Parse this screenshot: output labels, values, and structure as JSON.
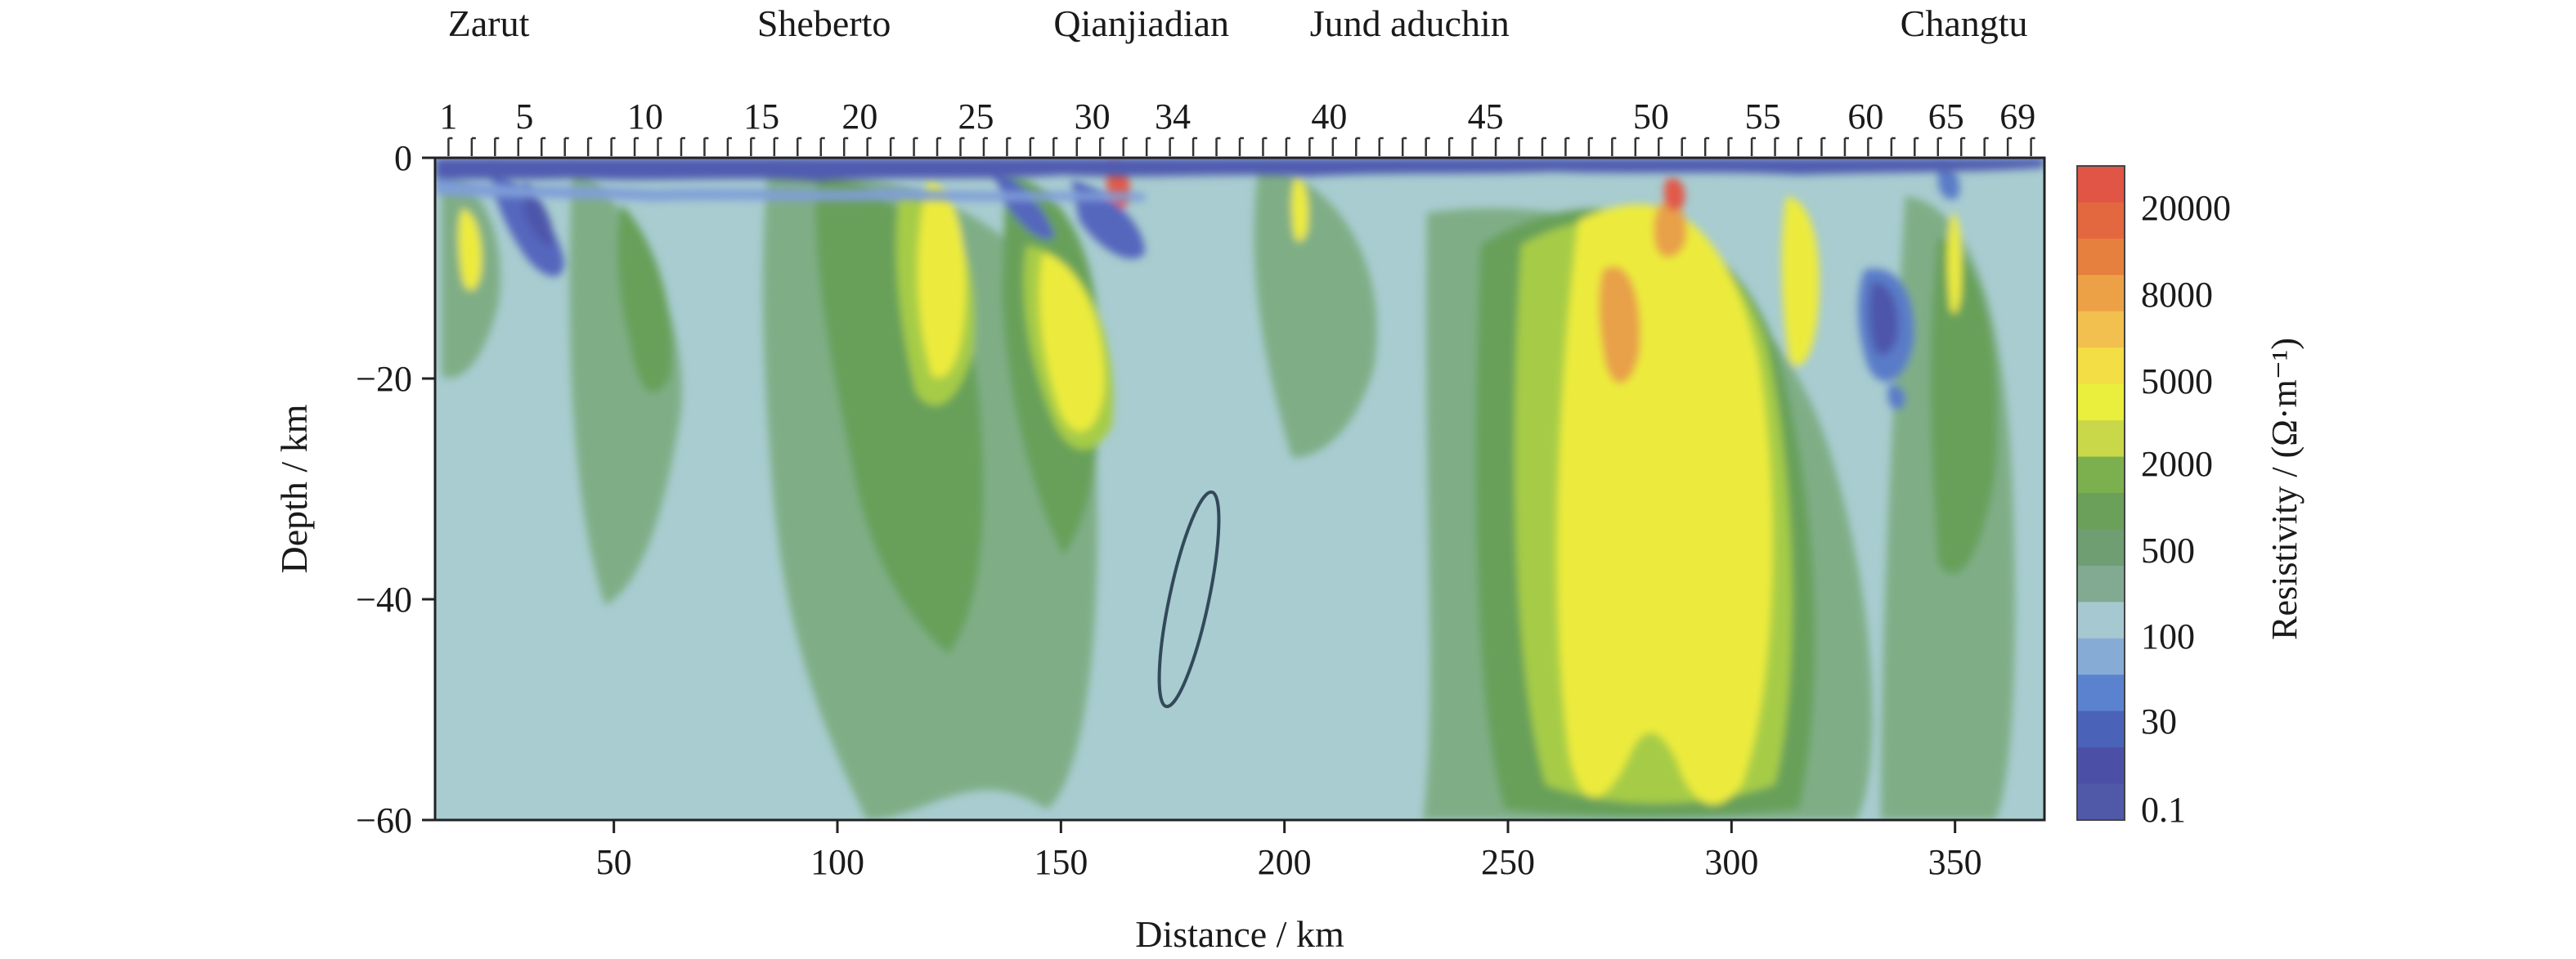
{
  "chart_data": {
    "type": "heatmap",
    "title": "",
    "xlabel": "Distance / km",
    "ylabel": "Depth / km",
    "xlim": [
      10,
      370
    ],
    "ylim": [
      -60,
      0
    ],
    "x_ticks": [
      50,
      100,
      150,
      200,
      250,
      300,
      350
    ],
    "y_ticks": [
      0,
      -20,
      -40,
      -60
    ],
    "y_tick_labels": [
      "0",
      "−20",
      "−40",
      "−60"
    ],
    "grid": false,
    "locations": [
      {
        "name": "Zarut",
        "x": 22
      },
      {
        "name": "Sheberto",
        "x": 97
      },
      {
        "name": "Qianjiadian",
        "x": 168
      },
      {
        "name": "Jund aduchin",
        "x": 228
      },
      {
        "name": "Changtu",
        "x": 352
      }
    ],
    "station_labels": [
      {
        "label": "1",
        "x": 13
      },
      {
        "label": "5",
        "x": 30
      },
      {
        "label": "10",
        "x": 57
      },
      {
        "label": "15",
        "x": 83
      },
      {
        "label": "20",
        "x": 105
      },
      {
        "label": "25",
        "x": 131
      },
      {
        "label": "30",
        "x": 157
      },
      {
        "label": "34",
        "x": 175
      },
      {
        "label": "40",
        "x": 210
      },
      {
        "label": "45",
        "x": 245
      },
      {
        "label": "50",
        "x": 282
      },
      {
        "label": "55",
        "x": 307
      },
      {
        "label": "60",
        "x": 330
      },
      {
        "label": "65",
        "x": 348
      },
      {
        "label": "69",
        "x": 364
      }
    ],
    "colorbar": {
      "label": "Resistivity / (Ω·m⁻¹)",
      "tick_labels": [
        "20000",
        "8000",
        "5000",
        "2000",
        "500",
        "100",
        "30",
        "0.1"
      ],
      "colors": [
        "#e05545",
        "#e3683f",
        "#e6803e",
        "#eda146",
        "#f2c04e",
        "#f4de45",
        "#eaee3c",
        "#c8d848",
        "#7cb04e",
        "#6aa05a",
        "#6e9e72",
        "#82aa92",
        "#a6c8d0",
        "#86acd6",
        "#5b82cf",
        "#4a62b8",
        "#4b50a6",
        "#5058a8"
      ]
    },
    "annotation": {
      "type": "ellipse",
      "center": [
        178,
        -40
      ],
      "rx_km": 4.5,
      "ry_km": 16.5,
      "rotate_deg": 12
    }
  }
}
